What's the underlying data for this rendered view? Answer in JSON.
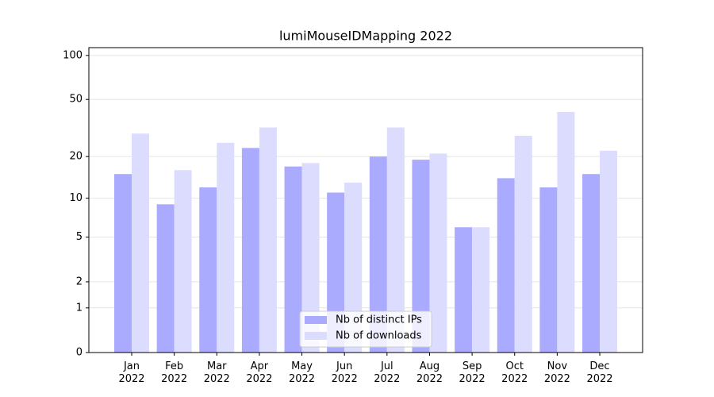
{
  "chart_data": {
    "type": "bar",
    "title": "lumiMouseIDMapping 2022",
    "categories": [
      "Jan\n2022",
      "Feb\n2022",
      "Mar\n2022",
      "Apr\n2022",
      "May\n2022",
      "Jun\n2022",
      "Jul\n2022",
      "Aug\n2022",
      "Sep\n2022",
      "Oct\n2022",
      "Nov\n2022",
      "Dec\n2022"
    ],
    "series": [
      {
        "name": "Nb of distinct IPs",
        "color": "#aaaaff",
        "values": [
          15,
          9,
          12,
          23,
          17,
          11,
          20,
          19,
          6,
          14,
          12,
          15
        ]
      },
      {
        "name": "Nb of downloads",
        "color": "#dcdcff",
        "values": [
          29,
          16,
          25,
          32,
          18,
          13,
          32,
          21,
          6,
          28,
          41,
          22
        ]
      }
    ],
    "ylim": [
      0,
      113
    ],
    "yticks": [
      0,
      1,
      2,
      5,
      10,
      20,
      50,
      100
    ],
    "yscale": "log1p",
    "grid": true,
    "legend": "lower center"
  }
}
